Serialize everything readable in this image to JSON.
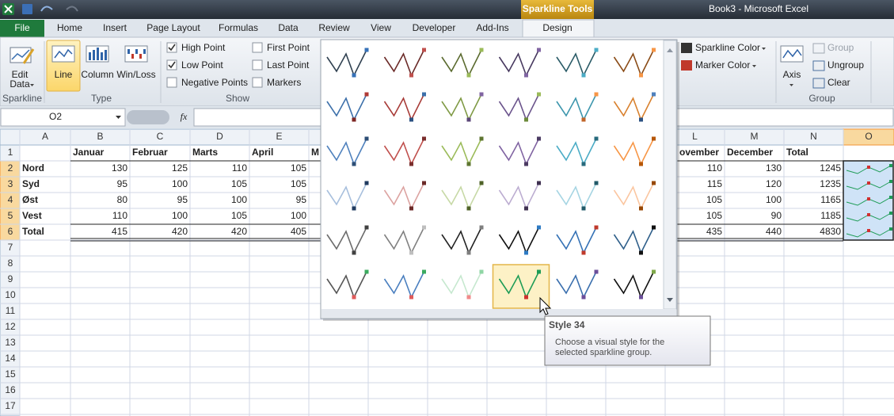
{
  "title_bar": {
    "context_tab": "Sparkline Tools",
    "title": "Book3 - Microsoft Excel"
  },
  "tabs": [
    "File",
    "Home",
    "Insert",
    "Page Layout",
    "Formulas",
    "Data",
    "Review",
    "View",
    "Developer",
    "Add-Ins",
    "Design"
  ],
  "ribbon": {
    "edit_data": [
      "Edit",
      "Data"
    ],
    "type_buttons": [
      "Line",
      "Column",
      "Win/Loss"
    ],
    "show_checks": [
      {
        "label": "High Point",
        "checked": true
      },
      {
        "label": "Low Point",
        "checked": true
      },
      {
        "label": "Negative Points",
        "checked": false
      },
      {
        "label": "First Point",
        "checked": false
      },
      {
        "label": "Last Point",
        "checked": false
      },
      {
        "label": "Markers",
        "checked": false
      }
    ],
    "style_buttons": [
      "Sparkline Color",
      "Marker Color"
    ],
    "axis": "Axis",
    "group_buttons": [
      "Group",
      "Ungroup",
      "Clear"
    ],
    "group_labels": [
      "Sparkline",
      "Type",
      "Show",
      "Group"
    ]
  },
  "formula_bar": {
    "name_box": "O2",
    "fx": "fx"
  },
  "sheet": {
    "columns": [
      "A",
      "B",
      "C",
      "D",
      "E",
      null,
      "L",
      "M",
      "N",
      "O"
    ],
    "row_numbers": [
      1,
      2,
      3,
      4,
      5,
      6,
      7,
      8,
      9,
      10,
      11,
      12,
      13,
      14,
      15,
      16,
      17
    ],
    "rows": [
      [
        null,
        "Januar",
        "Februar",
        "Marts",
        "April",
        "M",
        "ovember",
        "December",
        "Total",
        null
      ],
      [
        "Nord",
        130,
        125,
        110,
        105,
        null,
        110,
        130,
        1245,
        null
      ],
      [
        "Syd",
        95,
        100,
        105,
        105,
        null,
        115,
        120,
        1235,
        null
      ],
      [
        "Øst",
        80,
        95,
        100,
        95,
        null,
        105,
        100,
        1165,
        null
      ],
      [
        "Vest",
        110,
        100,
        105,
        100,
        null,
        105,
        90,
        1185,
        null
      ],
      [
        "Total",
        415,
        420,
        420,
        405,
        null,
        435,
        440,
        4830,
        null
      ]
    ]
  },
  "gallery": {
    "styles": [
      {
        "line": "#2f4050",
        "high": "#3671b8",
        "low": "#3671b8"
      },
      {
        "line": "#6b2a28",
        "high": "#c0504d",
        "low": "#c0504d"
      },
      {
        "line": "#5a6a2e",
        "high": "#9bbb59",
        "low": "#9bbb59"
      },
      {
        "line": "#47395f",
        "high": "#8064a2",
        "low": "#8064a2"
      },
      {
        "line": "#2a5b67",
        "high": "#4bacc6",
        "low": "#4bacc6"
      },
      {
        "line": "#8a4b16",
        "high": "#f79646",
        "low": "#f79646"
      },
      {
        "line": "#3d70aa",
        "high": "#b03a36",
        "low": "#7d2623"
      },
      {
        "line": "#a83c38",
        "high": "#3d70aa",
        "low": "#2c5282"
      },
      {
        "line": "#7f9a45",
        "high": "#8064a2",
        "low": "#5b4678"
      },
      {
        "line": "#6b548c",
        "high": "#9bbb59",
        "low": "#6b8a3a"
      },
      {
        "line": "#3d96ad",
        "high": "#f79646",
        "low": "#c0652a"
      },
      {
        "line": "#d9812e",
        "high": "#4f81bd",
        "low": "#2c5282"
      },
      {
        "line": "#4f81bd",
        "high": "#2c4d75",
        "low": "#2c4d75"
      },
      {
        "line": "#c0504d",
        "high": "#7a2e2c",
        "low": "#7a2e2c"
      },
      {
        "line": "#9bbb59",
        "high": "#5e7530",
        "low": "#5e7530"
      },
      {
        "line": "#8064a2",
        "high": "#4c3b63",
        "low": "#4c3b63"
      },
      {
        "line": "#4bacc6",
        "high": "#276a7c",
        "low": "#276a7c"
      },
      {
        "line": "#f79646",
        "high": "#b65708",
        "low": "#b65708"
      },
      {
        "line": "#a7bfdd",
        "high": "#1f3a5f",
        "low": "#1f3a5f"
      },
      {
        "line": "#dca3a1",
        "high": "#6b2a28",
        "low": "#6b2a28"
      },
      {
        "line": "#c7d9a6",
        "high": "#4f6228",
        "low": "#4f6228"
      },
      {
        "line": "#bcadd1",
        "high": "#3f3151",
        "low": "#3f3151"
      },
      {
        "line": "#a6d5e3",
        "high": "#215968",
        "low": "#215968"
      },
      {
        "line": "#fbc6a0",
        "high": "#974806",
        "low": "#974806"
      },
      {
        "line": "#6b6b6b",
        "high": "#404040",
        "low": "#404040"
      },
      {
        "line": "#808080",
        "high": "#bfbfbf",
        "low": "#bfbfbf"
      },
      {
        "line": "#222222",
        "high": "#7f7f7f",
        "low": "#7f7f7f"
      },
      {
        "line": "#111111",
        "high": "#2e7bc4",
        "low": "#2e7bc4"
      },
      {
        "line": "#3471b5",
        "high": "#c0392b",
        "low": "#c0392b"
      },
      {
        "line": "#2f5f8a",
        "high": "#111111",
        "low": "#111111"
      },
      {
        "line": "#555555",
        "high": "#3bab5f",
        "low": "#e05a5a"
      },
      {
        "line": "#4a7fbf",
        "high": "#3bab5f",
        "low": "#e05a5a"
      },
      {
        "line": "#c6e8cf",
        "high": "#8fd6a4",
        "low": "#f08a8a"
      },
      {
        "line": "#1e9c56",
        "high": "#1e9c56",
        "low": "#d03030",
        "selected": true
      },
      {
        "line": "#3a6fae",
        "high": "#6b4e9a",
        "low": "#6b4e9a"
      },
      {
        "line": "#111111",
        "high": "#7fa84a",
        "low": "#6b4e9a"
      }
    ]
  },
  "tooltip": {
    "title": "Style 34",
    "text": "Choose a visual style for the selected sparkline group."
  }
}
